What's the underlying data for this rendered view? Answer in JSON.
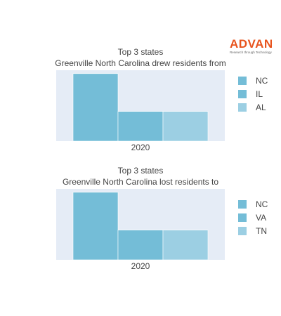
{
  "brand": {
    "name": "ADVAN",
    "tagline": "Research through Technology",
    "color": "#e8541e"
  },
  "colors": {
    "plot_bg": "#e5ecf6",
    "series": [
      "#74bdd7",
      "#74bdd7",
      "#9ccfe3"
    ],
    "text": "#444444"
  },
  "chart_data": [
    {
      "type": "bar",
      "title_lines": [
        "Top 3 states",
        "Greenville North Carolina drew residents from"
      ],
      "categories": [
        "2020"
      ],
      "series": [
        {
          "name": "NC",
          "values": [
            1.0
          ]
        },
        {
          "name": "IL",
          "values": [
            0.44
          ]
        },
        {
          "name": "AL",
          "values": [
            0.44
          ]
        }
      ],
      "xlabel": "",
      "ylabel": "",
      "ylim": [
        0,
        1.05
      ],
      "y_ticks_visible": false,
      "legend": "right"
    },
    {
      "type": "bar",
      "title_lines": [
        "Top 3 states",
        "Greenville North Carolina lost residents to"
      ],
      "categories": [
        "2020"
      ],
      "series": [
        {
          "name": "NC",
          "values": [
            1.0
          ]
        },
        {
          "name": "VA",
          "values": [
            0.44
          ]
        },
        {
          "name": "TN",
          "values": [
            0.44
          ]
        }
      ],
      "xlabel": "",
      "ylabel": "",
      "ylim": [
        0,
        1.05
      ],
      "y_ticks_visible": false,
      "legend": "right"
    }
  ]
}
